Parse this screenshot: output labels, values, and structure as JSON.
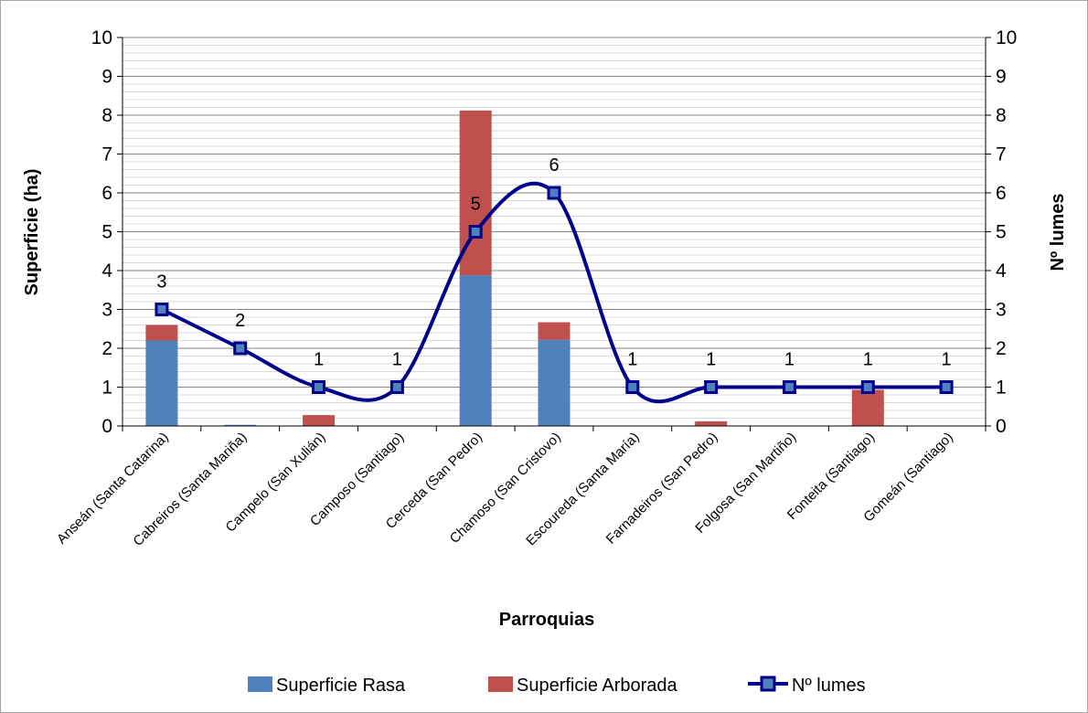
{
  "chart_data": {
    "type": "bar",
    "stacked": true,
    "xlabel": "Parroquias",
    "ylabel": "Superficie (ha)",
    "y2label": "Nº lumes",
    "ylim": [
      0,
      10
    ],
    "y2lim": [
      0,
      10
    ],
    "ytick_labels": [
      "0",
      "1",
      "2",
      "3",
      "4",
      "5",
      "6",
      "7",
      "8",
      "9",
      "10"
    ],
    "y2tick_labels": [
      "0",
      "1",
      "2",
      "3",
      "4",
      "5",
      "6",
      "7",
      "8",
      "9",
      "10"
    ],
    "grid": true,
    "legend_position": "bottom",
    "categories": [
      "Anseán (Santa Catarina)",
      "Cabreiros (Santa Mariña)",
      "Campelo (San Xulián)",
      "Camposo (Santiago)",
      "Cerceda (San Pedro)",
      "Chamoso (San Cristovo)",
      "Escoureda (Santa María)",
      "Farnadeiros (San Pedro)",
      "Folgosa (San Martiño)",
      "Fonteita (Santiago)",
      "Gomeán (Santiago)"
    ],
    "series": [
      {
        "name": "Superficie Rasa",
        "type": "bar",
        "axis": "left",
        "color": "#4f81bd",
        "values": [
          2.2,
          0.03,
          0,
          0,
          3.88,
          2.22,
          0,
          0,
          0,
          0,
          0
        ]
      },
      {
        "name": "Superficie Arborada",
        "type": "bar",
        "axis": "left",
        "color": "#c0504d",
        "values": [
          0.4,
          0,
          0.28,
          0,
          4.24,
          0.45,
          0,
          0.12,
          0,
          0.93,
          0
        ]
      },
      {
        "name": "Nº lumes",
        "type": "line",
        "axis": "right",
        "color": "#00008b",
        "marker_fill": "#4f81bd",
        "values": [
          3,
          2,
          1,
          1,
          5,
          6,
          1,
          1,
          1,
          1,
          1
        ],
        "data_labels": [
          "3",
          "2",
          "1",
          "1",
          "5",
          "6",
          "1",
          "1",
          "1",
          "1",
          "1"
        ]
      }
    ]
  }
}
